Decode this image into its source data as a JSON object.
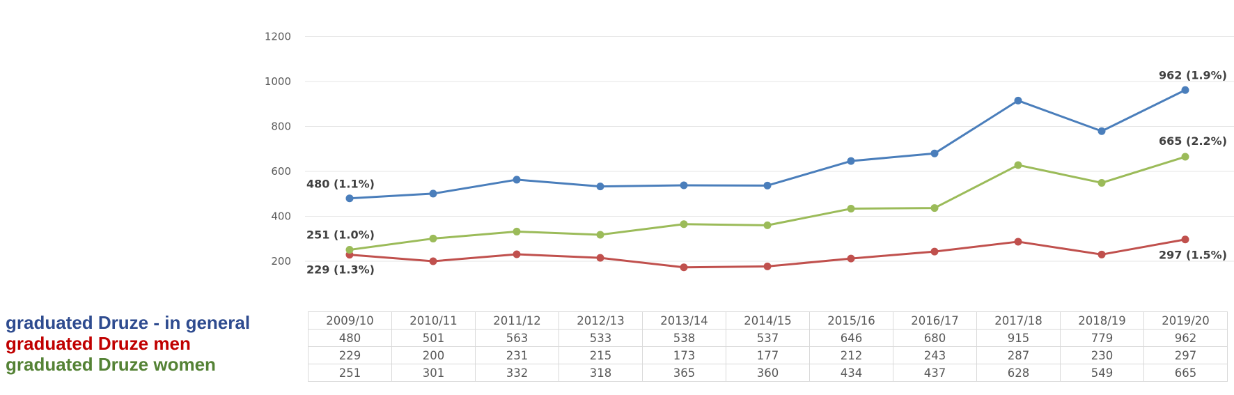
{
  "chart_data": {
    "type": "line",
    "categories": [
      "2009/10",
      "2010/11",
      "2011/12",
      "2012/13",
      "2013/14",
      "2014/15",
      "2015/16",
      "2016/17",
      "2017/18",
      "2018/19",
      "2019/20"
    ],
    "ylim": [
      200,
      1200
    ],
    "yticks": [
      200,
      400,
      600,
      800,
      1000,
      1200
    ],
    "grid": true,
    "series": [
      {
        "name": "graduated Druze - in  general",
        "color": "#4a7ebb",
        "values": [
          480,
          501,
          563,
          533,
          538,
          537,
          646,
          680,
          915,
          779,
          962
        ]
      },
      {
        "name": "graduated Druze men",
        "color": "#c0504d",
        "values": [
          229,
          200,
          231,
          215,
          173,
          177,
          212,
          243,
          287,
          230,
          297
        ]
      },
      {
        "name": "graduated Druze women",
        "color": "#9bbb59",
        "values": [
          251,
          301,
          332,
          318,
          365,
          360,
          434,
          437,
          628,
          549,
          665
        ]
      }
    ],
    "annotations": [
      {
        "series": 0,
        "index": 0,
        "text": "480 (1.1%)"
      },
      {
        "series": 0,
        "index": 10,
        "text": "962 (1.9%)"
      },
      {
        "series": 2,
        "index": 0,
        "text": "251 (1.0%)"
      },
      {
        "series": 2,
        "index": 10,
        "text": "665 (2.2%)"
      },
      {
        "series": 1,
        "index": 0,
        "text": "229 (1.3%)"
      },
      {
        "series": 1,
        "index": 10,
        "text": "297 (1.5%)"
      }
    ]
  },
  "legend": {
    "general": {
      "text": "graduated Druze - in  general",
      "color": "#2e4b8f"
    },
    "men": {
      "text": "graduated Druze men",
      "color": "#c00000"
    },
    "women": {
      "text": "graduated Druze women",
      "color": "#548235"
    }
  }
}
